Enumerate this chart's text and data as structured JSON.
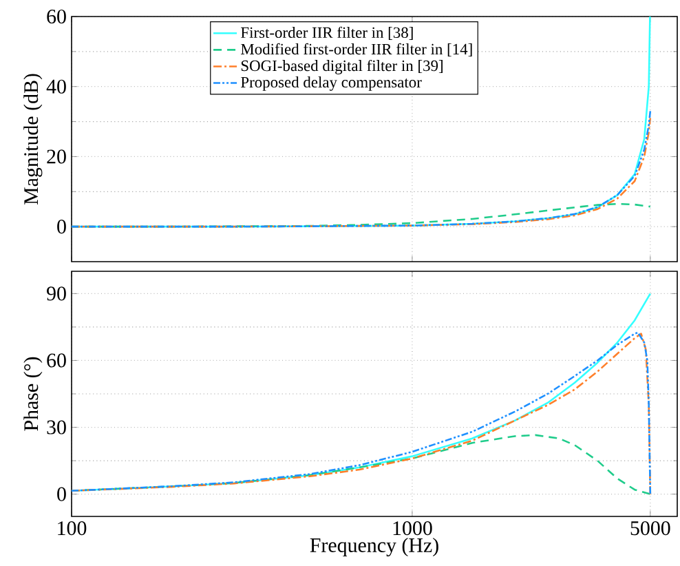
{
  "chart_data": [
    {
      "type": "line",
      "ylabel": "Magnitude (dB)",
      "xlim": [
        100,
        6000
      ],
      "ylim": [
        -10,
        60
      ],
      "log": "x",
      "grid": true,
      "legend": "top",
      "tick_labels": "y",
      "xticks": [
        {
          "value": 100,
          "label": null
        },
        {
          "value": 1000,
          "label": null
        },
        {
          "value": 5000,
          "label": null
        }
      ],
      "yticks": [
        0,
        20,
        40,
        60
      ],
      "series": [
        {
          "name": "First-order IIR filter in [38]",
          "color": "#33ffff",
          "line_style": "solid",
          "x": [
            100,
            200,
            300,
            500,
            700,
            1000,
            1500,
            2000,
            2500,
            3000,
            3500,
            4000,
            4500,
            4800,
            4950,
            4990
          ],
          "values": [
            0,
            0,
            0,
            0.1,
            0.2,
            0.3,
            0.8,
            1.5,
            2.4,
            3.5,
            5.5,
            9,
            15,
            25,
            40,
            60
          ]
        },
        {
          "name": "Modified first-order IIR filter in [14]",
          "color": "#1fcc8b",
          "line_style": "dashed",
          "x": [
            100,
            200,
            300,
            500,
            700,
            1000,
            1500,
            2000,
            2500,
            3000,
            3500,
            4000,
            4500,
            5000
          ],
          "values": [
            0,
            0,
            0.1,
            0.2,
            0.5,
            1,
            2.2,
            3.5,
            4.6,
            5.5,
            6.2,
            6.5,
            6.3,
            5.7
          ]
        },
        {
          "name": "SOGI-based digital filter in [39]",
          "color": "#ff7f2a",
          "line_style": "dashdot",
          "x": [
            100,
            200,
            300,
            500,
            700,
            1000,
            1500,
            2000,
            2500,
            3000,
            3500,
            4000,
            4500,
            4800,
            4950,
            5000
          ],
          "values": [
            0,
            0,
            0,
            0.1,
            0.2,
            0.3,
            0.7,
            1.3,
            2.1,
            3.2,
            5,
            8,
            13,
            20,
            27,
            31
          ]
        },
        {
          "name": "Proposed delay compensator",
          "color": "#1e90ff",
          "line_style": "dashdotdot",
          "x": [
            100,
            200,
            300,
            500,
            700,
            1000,
            1500,
            2000,
            2500,
            3000,
            3500,
            4000,
            4500,
            4800,
            4950,
            5000
          ],
          "values": [
            0,
            0,
            0,
            0.1,
            0.2,
            0.3,
            0.8,
            1.5,
            2.4,
            3.6,
            5.6,
            9,
            14.5,
            22,
            29,
            33
          ]
        }
      ]
    },
    {
      "type": "line",
      "xlabel": "Frequency (Hz)",
      "ylabel": "Phase (°)",
      "xlim": [
        100,
        6000
      ],
      "ylim": [
        -10,
        100
      ],
      "log": "x",
      "grid": true,
      "xticks": [
        100,
        1000,
        5000
      ],
      "yticks": [
        0,
        30,
        60,
        90
      ],
      "series": [
        {
          "color": "#33ffff",
          "line_style": "solid",
          "x": [
            100,
            200,
            300,
            500,
            700,
            1000,
            1500,
            2000,
            2500,
            3000,
            3500,
            4000,
            4500,
            5000
          ],
          "values": [
            1.5,
            3.5,
            5,
            8.5,
            12,
            17,
            25,
            33,
            41,
            50,
            59,
            68,
            78,
            90
          ]
        },
        {
          "color": "#1fcc8b",
          "line_style": "dashed",
          "x": [
            100,
            200,
            300,
            500,
            700,
            1000,
            1300,
            1500,
            2000,
            2300,
            2700,
            3000,
            3500,
            4000,
            4500,
            5000
          ],
          "values": [
            1.5,
            3.5,
            5,
            8.5,
            12,
            16,
            20.5,
            23,
            26,
            26.5,
            25,
            22,
            15,
            7,
            2,
            0
          ]
        },
        {
          "color": "#ff7f2a",
          "line_style": "dashdot",
          "x": [
            100,
            200,
            300,
            500,
            700,
            1000,
            1500,
            2000,
            2500,
            3000,
            3500,
            4000,
            4500,
            4700,
            4850,
            4950,
            5000
          ],
          "values": [
            1.5,
            3.3,
            4.8,
            8,
            11,
            16,
            24,
            33,
            40,
            47,
            55,
            63,
            70,
            72,
            65,
            40,
            0
          ]
        },
        {
          "color": "#1e90ff",
          "line_style": "dashdotdot",
          "x": [
            100,
            200,
            300,
            500,
            700,
            1000,
            1500,
            2000,
            2500,
            3000,
            3500,
            4000,
            4500,
            4600,
            4800,
            4900,
            4950,
            5000
          ],
          "values": [
            1.5,
            3.6,
            5.3,
            9,
            13,
            19,
            28,
            37,
            45,
            53,
            60,
            67,
            72,
            72.5,
            68,
            60,
            40,
            0
          ]
        }
      ]
    }
  ]
}
